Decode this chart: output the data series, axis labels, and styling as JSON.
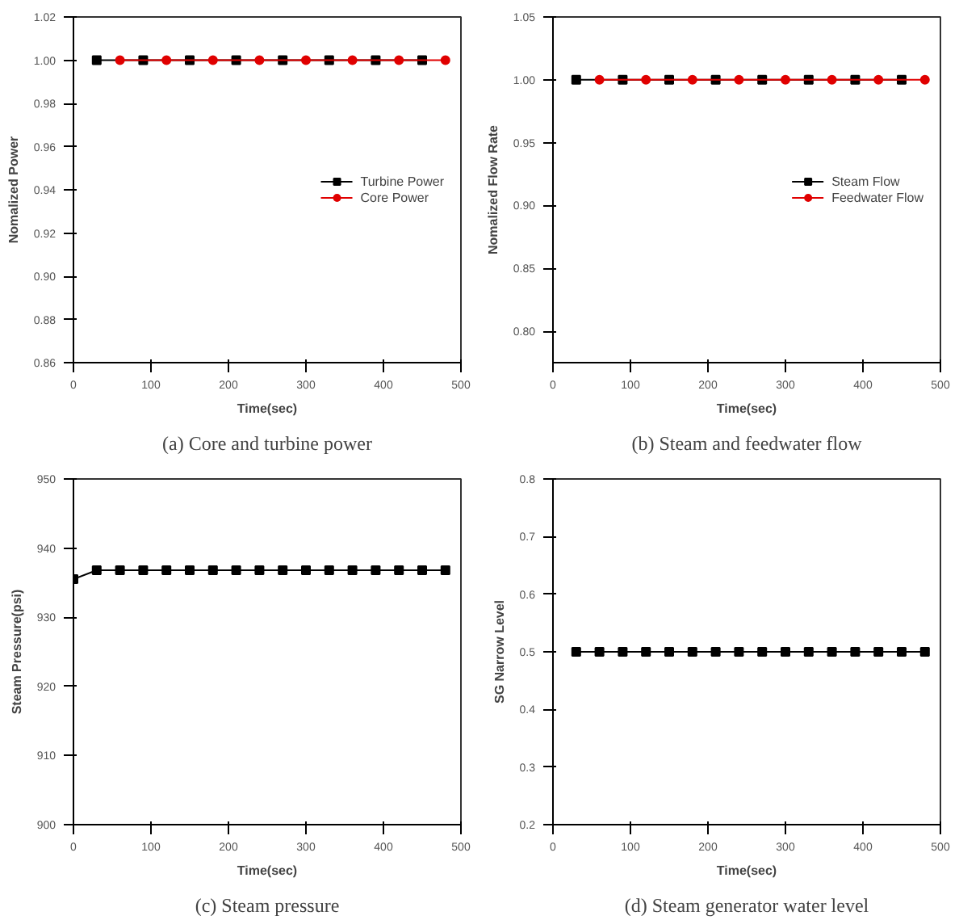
{
  "chart_data": [
    {
      "type": "line",
      "xlabel": "Time(sec)",
      "ylabel": "Nomalized Power",
      "annotations": [
        "(a) Core and turbine power"
      ],
      "xlim": [
        0,
        500
      ],
      "xticks": [
        0,
        100,
        200,
        300,
        400,
        500
      ],
      "ylim": [
        0.86,
        1.02
      ],
      "yticks": [
        {
          "value": 0.86,
          "label": "0.86"
        },
        {
          "value": 0.88,
          "label": "0.88"
        },
        {
          "value": 0.9,
          "label": "0.90"
        },
        {
          "value": 0.92,
          "label": "0.92"
        },
        {
          "value": 0.94,
          "label": "0.94"
        },
        {
          "value": 0.96,
          "label": "0.96"
        },
        {
          "value": 0.98,
          "label": "0.98"
        },
        {
          "value": 1.0,
          "label": "1.00"
        },
        {
          "value": 1.02,
          "label": "1.02"
        }
      ],
      "grid": false,
      "legend": "right",
      "series": [
        {
          "name": "Turbine Power",
          "color": "#000000",
          "marker": "square",
          "x": [
            30,
            90,
            150,
            210,
            270,
            330,
            390,
            450
          ],
          "values": [
            1.0,
            1.0,
            1.0,
            1.0,
            1.0,
            1.0,
            1.0,
            1.0
          ]
        },
        {
          "name": "Core Power",
          "color": "#e00000",
          "marker": "circle",
          "x": [
            60,
            120,
            180,
            240,
            300,
            360,
            420,
            480
          ],
          "values": [
            1.0,
            1.0,
            1.0,
            1.0,
            1.0,
            1.0,
            1.0,
            1.0
          ]
        }
      ]
    },
    {
      "type": "line",
      "xlabel": "Time(sec)",
      "ylabel": "Nomalized Flow Rate",
      "annotations": [
        "(b) Steam and feedwater flow"
      ],
      "xlim": [
        0,
        500
      ],
      "xticks": [
        0,
        100,
        200,
        300,
        400,
        500
      ],
      "ylim": [
        0.775,
        1.05
      ],
      "yticks": [
        {
          "value": 0.8,
          "label": "0.80"
        },
        {
          "value": 0.85,
          "label": "0.85"
        },
        {
          "value": 0.9,
          "label": "0.90"
        },
        {
          "value": 0.95,
          "label": "0.95"
        },
        {
          "value": 1.0,
          "label": "1.00"
        },
        {
          "value": 1.05,
          "label": "1.05"
        }
      ],
      "grid": false,
      "legend": "right",
      "series": [
        {
          "name": "Steam Flow",
          "color": "#000000",
          "marker": "square",
          "x": [
            30,
            90,
            150,
            210,
            270,
            330,
            390,
            450
          ],
          "values": [
            1.0,
            1.0,
            1.0,
            1.0,
            1.0,
            1.0,
            1.0,
            1.0
          ]
        },
        {
          "name": "Feedwater Flow",
          "color": "#e00000",
          "marker": "circle",
          "x": [
            60,
            120,
            180,
            240,
            300,
            360,
            420,
            480
          ],
          "values": [
            1.0,
            1.0,
            1.0,
            1.0,
            1.0,
            1.0,
            1.0,
            1.0
          ]
        }
      ]
    },
    {
      "type": "line",
      "xlabel": "Time(sec)",
      "ylabel": "Steam Pressure(psi)",
      "annotations": [
        "(c) Steam pressure"
      ],
      "xlim": [
        0,
        500
      ],
      "xticks": [
        0,
        100,
        200,
        300,
        400,
        500
      ],
      "ylim": [
        900,
        950
      ],
      "yticks": [
        900,
        910,
        920,
        930,
        940,
        950
      ],
      "grid": false,
      "legend": false,
      "series": [
        {
          "color": "#000000",
          "marker": "square",
          "x": [
            0,
            30,
            60,
            90,
            120,
            150,
            180,
            210,
            240,
            270,
            300,
            330,
            360,
            390,
            420,
            450,
            480
          ],
          "values": [
            935.5,
            936.8,
            936.8,
            936.8,
            936.8,
            936.8,
            936.8,
            936.8,
            936.8,
            936.8,
            936.8,
            936.8,
            936.8,
            936.8,
            936.8,
            936.8,
            936.8
          ]
        }
      ]
    },
    {
      "type": "line",
      "xlabel": "Time(sec)",
      "ylabel": "SG Narrow Level",
      "annotations": [
        "(d) Steam generator water level"
      ],
      "xlim": [
        0,
        500
      ],
      "xticks": [
        0,
        100,
        200,
        300,
        400,
        500
      ],
      "ylim": [
        0.2,
        0.8
      ],
      "yticks": [
        0.2,
        0.3,
        0.4,
        0.5,
        0.6,
        0.7,
        0.8
      ],
      "grid": false,
      "legend": false,
      "series": [
        {
          "color": "#000000",
          "marker": "square",
          "x": [
            30,
            60,
            90,
            120,
            150,
            180,
            210,
            240,
            270,
            300,
            330,
            360,
            390,
            420,
            450,
            480
          ],
          "values": [
            0.5,
            0.5,
            0.5,
            0.5,
            0.5,
            0.5,
            0.5,
            0.5,
            0.5,
            0.5,
            0.5,
            0.5,
            0.5,
            0.5,
            0.5,
            0.5
          ]
        }
      ]
    }
  ]
}
